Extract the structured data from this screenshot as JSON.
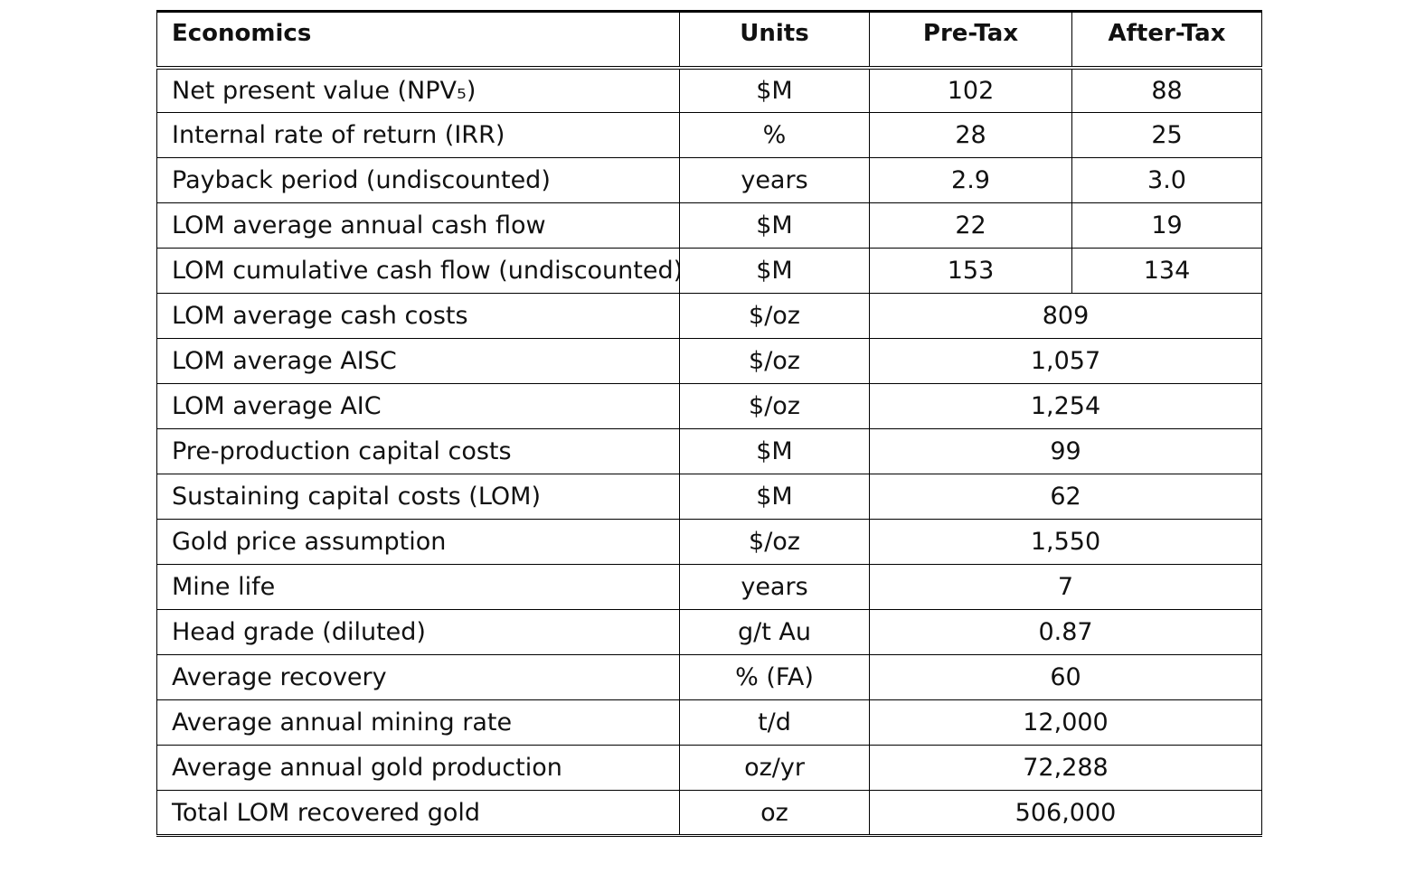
{
  "table": {
    "headers": {
      "metric": "Economics",
      "units": "Units",
      "pre_tax": "Pre-Tax",
      "after_tax": "After-Tax"
    },
    "split_rows": [
      {
        "metric": "Net present value (NPV₅)",
        "units": "$M",
        "pre_tax": "102",
        "after_tax": "88"
      },
      {
        "metric": "Internal rate of return (IRR)",
        "units": "%",
        "pre_tax": "28",
        "after_tax": "25"
      },
      {
        "metric": "Payback period (undiscounted)",
        "units": "years",
        "pre_tax": "2.9",
        "after_tax": "3.0"
      },
      {
        "metric": "LOM average annual cash flow",
        "units": "$M",
        "pre_tax": "22",
        "after_tax": "19"
      },
      {
        "metric": "LOM cumulative cash flow (undiscounted)",
        "units": "$M",
        "pre_tax": "153",
        "after_tax": "134"
      }
    ],
    "merged_rows": [
      {
        "metric": "LOM average cash costs",
        "units": "$/oz",
        "value": "809"
      },
      {
        "metric": "LOM average AISC",
        "units": "$/oz",
        "value": "1,057"
      },
      {
        "metric": "LOM average AIC",
        "units": "$/oz",
        "value": "1,254"
      },
      {
        "metric": "Pre-production capital costs",
        "units": "$M",
        "value": "99"
      },
      {
        "metric": "Sustaining capital costs (LOM)",
        "units": "$M",
        "value": "62"
      },
      {
        "metric": "Gold price assumption",
        "units": "$/oz",
        "value": "1,550"
      },
      {
        "metric": "Mine life",
        "units": "years",
        "value": "7"
      },
      {
        "metric": "Head grade (diluted)",
        "units": "g/t Au",
        "value": "0.87"
      },
      {
        "metric": "Average recovery",
        "units": "% (FA)",
        "value": "60"
      },
      {
        "metric": "Average annual mining rate",
        "units": "t/d",
        "value": "12,000"
      },
      {
        "metric": "Average annual gold production",
        "units": "oz/yr",
        "value": "72,288"
      },
      {
        "metric": "Total LOM recovered gold",
        "units": "oz",
        "value": "506,000"
      }
    ]
  }
}
